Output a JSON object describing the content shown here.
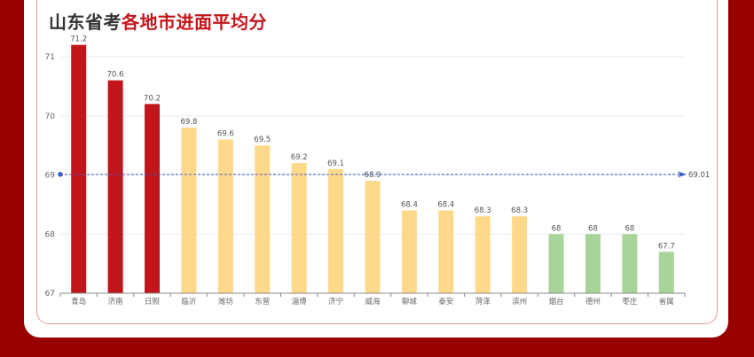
{
  "title": {
    "prefix": "山东省考",
    "highlight": "各地市进面平均分"
  },
  "colors": {
    "background": "#990000",
    "top_tier": "#c0151b",
    "mid_tier": "#ffd98a",
    "low_tier": "#a8d49a",
    "average_line": "#3b5fc4",
    "title_dark": "#333333",
    "title_red": "#c4161c"
  },
  "chart_data": {
    "type": "bar",
    "title": "山东省考各地市进面平均分",
    "xlabel": "",
    "ylabel": "",
    "ylim": [
      67,
      71.2
    ],
    "yticks": [
      67,
      68,
      69,
      70,
      71
    ],
    "grid": true,
    "categories": [
      "青岛",
      "济南",
      "日照",
      "临沂",
      "潍坊",
      "东营",
      "淄博",
      "济宁",
      "威海",
      "聊城",
      "泰安",
      "菏泽",
      "滨州",
      "烟台",
      "德州",
      "枣庄",
      "省属"
    ],
    "values": [
      71.2,
      70.6,
      70.2,
      69.8,
      69.6,
      69.5,
      69.2,
      69.1,
      68.9,
      68.4,
      68.4,
      68.3,
      68.3,
      68,
      68,
      68,
      67.7
    ],
    "value_labels": [
      "71.2",
      "70.6",
      "70.2",
      "69.8",
      "69.6",
      "69.5",
      "69.2",
      "69.1",
      "68.9",
      "68.4",
      "68.4",
      "68.3",
      "68.3",
      "68",
      "68",
      "68",
      "67.7"
    ],
    "tiers": [
      "top",
      "top",
      "top",
      "mid",
      "mid",
      "mid",
      "mid",
      "mid",
      "mid",
      "mid",
      "mid",
      "mid",
      "mid",
      "low",
      "low",
      "low",
      "low"
    ],
    "average_line": {
      "value": 69.01,
      "label": "69.01",
      "style": "dashed"
    }
  }
}
